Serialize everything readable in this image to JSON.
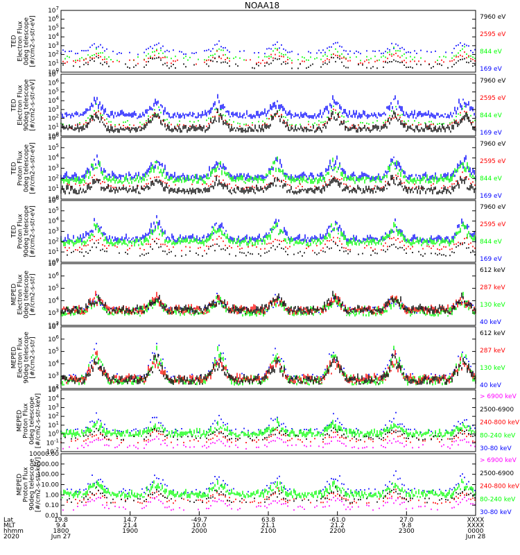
{
  "title": "NOAA18",
  "colors": {
    "blue": "#0000ff",
    "red": "#ff0000",
    "green": "#00ff00",
    "black": "#000000",
    "magenta": "#ff00ff",
    "axis": "#000000",
    "bg": "#ffffff"
  },
  "chart_data": [
    {
      "type": "scatter",
      "ylabel": [
        "TED",
        "Electron Flux",
        "0deg telescope",
        "[#/cm2-s-str-eV]"
      ],
      "yscale": "log",
      "ylim": [
        1,
        10000000
      ],
      "ytick_labels": [
        "10^0",
        "10^1",
        "10^2",
        "10^3",
        "10^4",
        "10^5",
        "10^6",
        "10^7"
      ],
      "legend": [
        {
          "label": "7960 eV",
          "color": "#000000"
        },
        {
          "label": "2595 eV",
          "color": "#ff0000"
        },
        {
          "label": "844 eV",
          "color": "#00ff00"
        },
        {
          "label": "169 eV",
          "color": "#0000ff"
        }
      ],
      "series": [
        {
          "color": "#0000ff",
          "base": 150,
          "level": "low",
          "dense": false
        },
        {
          "color": "#00ff00",
          "base": 30,
          "level": "low",
          "dense": false
        },
        {
          "color": "#ff0000",
          "base": 12,
          "level": "low",
          "dense": false
        },
        {
          "color": "#000000",
          "base": 4,
          "level": "low",
          "dense": false
        }
      ]
    },
    {
      "type": "scatter",
      "ylabel": [
        "TED",
        "Electron Flux",
        "90deg telescope",
        "[#/cm2-s-str-eV]"
      ],
      "yscale": "log",
      "ylim": [
        1,
        10000000
      ],
      "ytick_labels": [
        "10^0",
        "10^1",
        "10^2",
        "10^3",
        "10^4",
        "10^5",
        "10^6",
        "10^7"
      ],
      "legend": [
        {
          "label": "7960 eV",
          "color": "#000000"
        },
        {
          "label": "2595 eV",
          "color": "#ff0000"
        },
        {
          "label": "844 eV",
          "color": "#00ff00"
        },
        {
          "label": "169 eV",
          "color": "#0000ff"
        }
      ],
      "series": [
        {
          "color": "#0000ff",
          "base": 150,
          "level": "mid",
          "dense": true
        },
        {
          "color": "#00ff00",
          "base": 25,
          "level": "mid",
          "dense": false
        },
        {
          "color": "#ff0000",
          "base": 10,
          "level": "mid",
          "dense": false
        },
        {
          "color": "#000000",
          "base": 4,
          "level": "mid",
          "dense": true
        }
      ]
    },
    {
      "type": "scatter",
      "ylabel": [
        "TED",
        "Proton Flux",
        "0deg telescope",
        "[#/cm2-s-str-eV]"
      ],
      "yscale": "log",
      "ylim": [
        1,
        1000000
      ],
      "ytick_labels": [
        "10^0",
        "10^1",
        "10^2",
        "10^3",
        "10^4",
        "10^5",
        "10^6"
      ],
      "legend": [
        {
          "label": "7960 eV",
          "color": "#000000"
        },
        {
          "label": "2595 eV",
          "color": "#ff0000"
        },
        {
          "label": "844 eV",
          "color": "#00ff00"
        },
        {
          "label": "169 eV",
          "color": "#0000ff"
        }
      ],
      "series": [
        {
          "color": "#0000ff",
          "base": 100,
          "level": "mid",
          "dense": true
        },
        {
          "color": "#00ff00",
          "base": 50,
          "level": "mid",
          "dense": true
        },
        {
          "color": "#ff0000",
          "base": 15,
          "level": "low",
          "dense": false
        },
        {
          "color": "#000000",
          "base": 5,
          "level": "low",
          "dense": true
        }
      ]
    },
    {
      "type": "scatter",
      "ylabel": [
        "TED",
        "Proton Flux",
        "90deg telescope",
        "[#/cm2-s-str-eV]"
      ],
      "yscale": "log",
      "ylim": [
        1,
        1000000
      ],
      "ytick_labels": [
        "10^0",
        "10^1",
        "10^2",
        "10^3",
        "10^4",
        "10^5",
        "10^6"
      ],
      "legend": [
        {
          "label": "7960 eV",
          "color": "#000000"
        },
        {
          "label": "2595 eV",
          "color": "#ff0000"
        },
        {
          "label": "844 eV",
          "color": "#00ff00"
        },
        {
          "label": "169 eV",
          "color": "#0000ff"
        }
      ],
      "series": [
        {
          "color": "#0000ff",
          "base": 120,
          "level": "mid",
          "dense": true
        },
        {
          "color": "#00ff00",
          "base": 60,
          "level": "mid",
          "dense": true
        },
        {
          "color": "#ff0000",
          "base": 20,
          "level": "low",
          "dense": false
        },
        {
          "color": "#000000",
          "base": 6,
          "level": "low",
          "dense": false
        }
      ]
    },
    {
      "type": "scatter",
      "ylabel": [
        "MEPED",
        "Electron Flux",
        "0deg telescope",
        "[#/cm2-s-str]"
      ],
      "yscale": "log",
      "ylim": [
        100,
        10000000
      ],
      "ytick_labels": [
        "10^2",
        "10^3",
        "10^4",
        "10^5",
        "10^6",
        "10^7"
      ],
      "legend": [
        {
          "label": "612 keV",
          "color": "#000000"
        },
        {
          "label": "287 keV",
          "color": "#ff0000"
        },
        {
          "label": "130 keV",
          "color": "#00ff00"
        },
        {
          "label": "40 keV",
          "color": "#0000ff"
        }
      ],
      "series": [
        {
          "color": "#0000ff",
          "base": 1500,
          "level": "low",
          "dense": false
        },
        {
          "color": "#00ff00",
          "base": 900,
          "level": "low",
          "dense": true
        },
        {
          "color": "#ff0000",
          "base": 1200,
          "level": "low",
          "dense": true
        },
        {
          "color": "#000000",
          "base": 1300,
          "level": "low",
          "dense": true
        }
      ]
    },
    {
      "type": "scatter",
      "ylabel": [
        "MEPED",
        "Electron Flux",
        "90deg telescope",
        "[#/cm2-s-str]"
      ],
      "yscale": "log",
      "ylim": [
        100,
        10000000
      ],
      "ytick_labels": [
        "10^2",
        "10^3",
        "10^4",
        "10^5",
        "10^6",
        "10^7"
      ],
      "legend": [
        {
          "label": "612 keV",
          "color": "#000000"
        },
        {
          "label": "287 keV",
          "color": "#ff0000"
        },
        {
          "label": "130 keV",
          "color": "#00ff00"
        },
        {
          "label": "40 keV",
          "color": "#0000ff"
        }
      ],
      "series": [
        {
          "color": "#0000ff",
          "base": 800,
          "level": "high",
          "dense": false
        },
        {
          "color": "#00ff00",
          "base": 300,
          "level": "high",
          "dense": true
        },
        {
          "color": "#ff0000",
          "base": 400,
          "level": "mid",
          "dense": true
        },
        {
          "color": "#000000",
          "base": 350,
          "level": "mid",
          "dense": true
        }
      ]
    },
    {
      "type": "scatter",
      "ylabel": [
        "MEPED",
        "Proton Flux",
        "0deg telescope",
        "[#/cm2-s-str-keV]"
      ],
      "yscale": "log",
      "ylim": [
        0.01,
        100000
      ],
      "ytick_labels": [
        "10^-2",
        "10^-1",
        "10^0",
        "10^1",
        "10^2",
        "10^3",
        "10^4",
        "10^5"
      ],
      "legend": [
        {
          "label": "> 6900 keV",
          "color": "#ff00ff"
        },
        {
          "label": "2500-6900",
          "color": "#000000"
        },
        {
          "label": "240-800 keV",
          "color": "#ff0000"
        },
        {
          "label": "80-240 keV",
          "color": "#00ff00"
        },
        {
          "label": "30-80 keV",
          "color": "#0000ff"
        }
      ],
      "series": [
        {
          "color": "#0000ff",
          "base": 2,
          "level": "mid",
          "dense": false
        },
        {
          "color": "#00ff00",
          "base": 0.7,
          "level": "low",
          "dense": true
        },
        {
          "color": "#ff0000",
          "base": 0.15,
          "level": "low",
          "dense": false
        },
        {
          "color": "#000000",
          "base": 0.3,
          "level": "low",
          "dense": false
        },
        {
          "color": "#ff00ff",
          "base": 0.03,
          "level": "low",
          "dense": false
        }
      ]
    },
    {
      "type": "scatter",
      "ylabel": [
        "MEPED",
        "Proton Flux",
        "90deg telescope",
        "[#/cm2-s-str-keV]"
      ],
      "yscale": "log",
      "ylim": [
        0.01,
        10000
      ],
      "ytick_labels": [
        "0.01",
        "0.10",
        "1.00",
        "10.00",
        "100.00",
        "1000.00",
        "10000.00"
      ],
      "legend": [
        {
          "label": "> 6900 keV",
          "color": "#ff00ff"
        },
        {
          "label": "2500-6900",
          "color": "#000000"
        },
        {
          "label": "240-800 keV",
          "color": "#ff0000"
        },
        {
          "label": "80-240 keV",
          "color": "#00ff00"
        },
        {
          "label": "30-80 keV",
          "color": "#0000ff"
        }
      ],
      "series": [
        {
          "color": "#0000ff",
          "base": 2,
          "level": "mid",
          "dense": false
        },
        {
          "color": "#00ff00",
          "base": 0.8,
          "level": "low",
          "dense": true
        },
        {
          "color": "#ff0000",
          "base": 0.2,
          "level": "low",
          "dense": false
        },
        {
          "color": "#000000",
          "base": 0.25,
          "level": "low",
          "dense": false
        },
        {
          "color": "#ff00ff",
          "base": 0.05,
          "level": "low",
          "dense": false
        }
      ]
    }
  ],
  "xaxis": {
    "row_labels": [
      "Lat",
      "MLT",
      "hhmm",
      "2020"
    ],
    "ticks": [
      {
        "lat": "19.8",
        "mlt": "9.4",
        "hhmm": "1800",
        "date": "Jun 27"
      },
      {
        "lat": "14.7",
        "mlt": "21.4",
        "hhmm": "1900",
        "date": ""
      },
      {
        "lat": "-49.7",
        "mlt": "10.0",
        "hhmm": "2000",
        "date": ""
      },
      {
        "lat": "63.8",
        "mlt": "21.1",
        "hhmm": "2100",
        "date": ""
      },
      {
        "lat": "-61.0",
        "mlt": "21.2",
        "hhmm": "2200",
        "date": ""
      },
      {
        "lat": "27.0",
        "mlt": "9.8",
        "hhmm": "2300",
        "date": ""
      },
      {
        "lat": "XXXX",
        "mlt": "XXXX",
        "hhmm": "0000",
        "date": "Jun 28"
      }
    ]
  }
}
